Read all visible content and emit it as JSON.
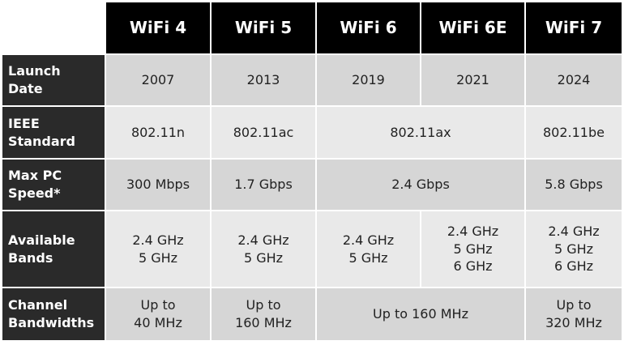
{
  "table": {
    "header": [
      "WiFi 4",
      "WiFi 5",
      "WiFi 6",
      "WiFi 6E",
      "WiFi 7"
    ],
    "rows": [
      {
        "label": "Launch\nDate",
        "cells": [
          "2007",
          "2013",
          "2019",
          "2021",
          "2024"
        ]
      },
      {
        "label": "IEEE\nStandard",
        "cells": [
          "802.11n",
          "802.11ac",
          "802.11ax",
          "802.11be"
        ]
      },
      {
        "label": "Max PC\nSpeed*",
        "cells": [
          "300 Mbps",
          "1.7 Gbps",
          "2.4 Gbps",
          "5.8 Gbps"
        ]
      },
      {
        "label": "Available\nBands",
        "cells": [
          "2.4 GHz\n5 GHz",
          "2.4 GHz\n5 GHz",
          "2.4 GHz\n5 GHz",
          "2.4 GHz\n5 GHz\n6 GHz",
          "2.4 GHz\n5 GHz\n6 GHz"
        ]
      },
      {
        "label": "Channel\nBandwidths",
        "cells": [
          "Up to\n40 MHz",
          "Up to\n160 MHz",
          "Up to 160 MHz",
          "Up to\n320 MHz"
        ]
      }
    ]
  }
}
